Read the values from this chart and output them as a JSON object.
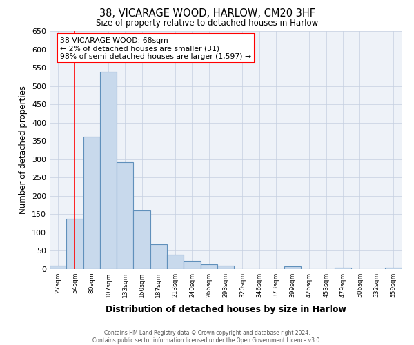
{
  "title": "38, VICARAGE WOOD, HARLOW, CM20 3HF",
  "subtitle": "Size of property relative to detached houses in Harlow",
  "xlabel": "Distribution of detached houses by size in Harlow",
  "ylabel": "Number of detached properties",
  "bin_labels": [
    "27sqm",
    "54sqm",
    "80sqm",
    "107sqm",
    "133sqm",
    "160sqm",
    "187sqm",
    "213sqm",
    "240sqm",
    "266sqm",
    "293sqm",
    "320sqm",
    "346sqm",
    "373sqm",
    "399sqm",
    "426sqm",
    "453sqm",
    "479sqm",
    "506sqm",
    "532sqm",
    "559sqm"
  ],
  "bar_values": [
    10,
    137,
    362,
    538,
    292,
    160,
    67,
    40,
    22,
    14,
    10,
    0,
    0,
    0,
    7,
    0,
    0,
    3,
    0,
    0,
    3
  ],
  "bar_color": "#c8d9ec",
  "bar_edge_color": "#6090bb",
  "ylim": [
    0,
    650
  ],
  "yticks": [
    0,
    50,
    100,
    150,
    200,
    250,
    300,
    350,
    400,
    450,
    500,
    550,
    600,
    650
  ],
  "red_line_x": 1.5,
  "annotation_text": "38 VICARAGE WOOD: 68sqm\n← 2% of detached houses are smaller (31)\n98% of semi-detached houses are larger (1,597) →",
  "footer_line1": "Contains HM Land Registry data © Crown copyright and database right 2024.",
  "footer_line2": "Contains public sector information licensed under the Open Government Licence v3.0.",
  "background_color": "#ffffff",
  "plot_bg_color": "#eef2f8",
  "grid_color": "#c5cfe0"
}
